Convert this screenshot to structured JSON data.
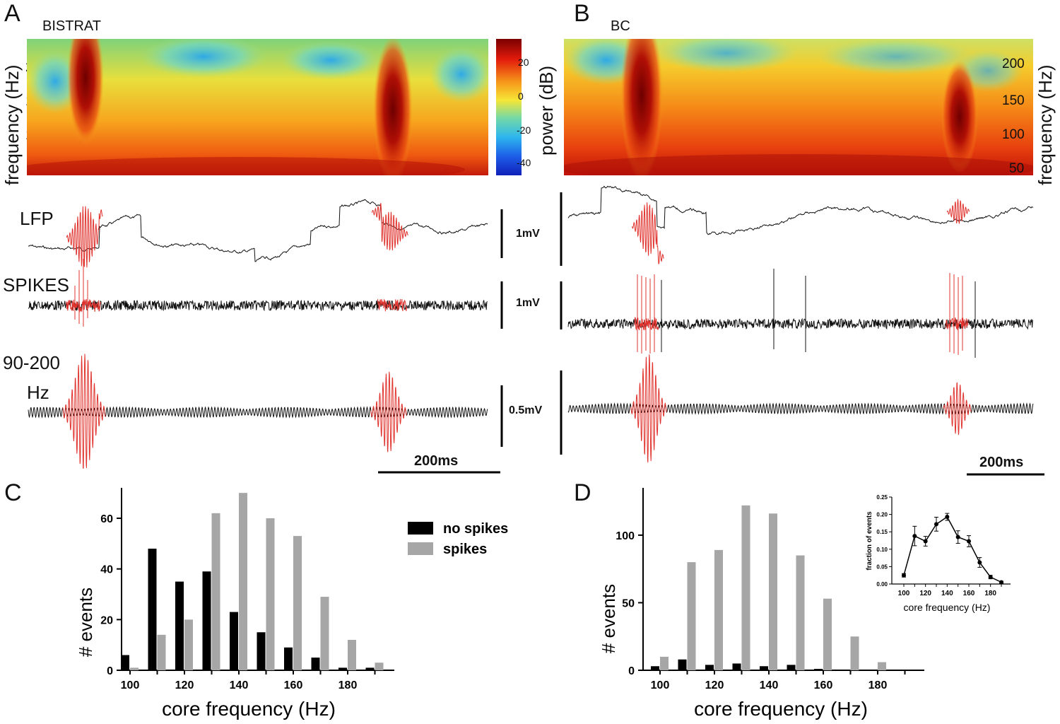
{
  "panels": {
    "A": {
      "letter": "A",
      "cell": "BISTRAT"
    },
    "B": {
      "letter": "B",
      "cell": "BC"
    },
    "C": {
      "letter": "C"
    },
    "D": {
      "letter": "D"
    }
  },
  "spectrogram": {
    "ylabel": "frequency (Hz)",
    "yticks": [
      "200",
      "150",
      "100",
      "50"
    ],
    "colorbar_label": "power (dB)",
    "colorbar_ticks": [
      "20",
      "0",
      "-20",
      "-40"
    ],
    "colors": {
      "high": "#8b0000",
      "mid": "#ffd21e",
      "low": "#1f3bdc"
    }
  },
  "traces": {
    "lfp_label": "LFP",
    "spikes_label": "SPIKES",
    "band_label_1": "90-200",
    "band_label_2": "Hz",
    "scales_A": [
      "1mV",
      "1mV",
      "0.5mV"
    ],
    "time_scale_A": "200ms",
    "time_scale_B": "200ms",
    "colors": {
      "trace": "#111111",
      "ripple": "#e0332e"
    }
  },
  "chart_data": [
    {
      "type": "bar",
      "panel": "C",
      "xlabel": "core frequency (Hz)",
      "ylabel": "# events",
      "categories": [
        100,
        110,
        120,
        130,
        140,
        150,
        160,
        170,
        180,
        190
      ],
      "xticks": [
        "100",
        "120",
        "140",
        "160",
        "180"
      ],
      "yticks": [
        0,
        20,
        40,
        60
      ],
      "ylim": [
        0,
        72
      ],
      "legend": [
        "no spikes",
        "spikes"
      ],
      "series": [
        {
          "name": "no spikes",
          "color": "#000000",
          "values": [
            6,
            48,
            35,
            39,
            23,
            15,
            9,
            5,
            1,
            1
          ]
        },
        {
          "name": "spikes",
          "color": "#a6a6a6",
          "values": [
            1,
            14,
            20,
            62,
            70,
            60,
            53,
            29,
            12,
            3
          ]
        }
      ]
    },
    {
      "type": "bar",
      "panel": "D",
      "xlabel": "core frequency (Hz)",
      "ylabel": "# events",
      "categories": [
        100,
        110,
        120,
        130,
        140,
        150,
        160,
        170,
        180,
        190
      ],
      "xticks": [
        "100",
        "120",
        "140",
        "160",
        "180"
      ],
      "yticks": [
        0,
        50,
        100
      ],
      "ylim": [
        0,
        135
      ],
      "series": [
        {
          "name": "no spikes",
          "color": "#000000",
          "values": [
            3,
            8,
            4,
            5,
            3,
            4,
            1,
            0,
            0,
            0
          ]
        },
        {
          "name": "spikes",
          "color": "#a6a6a6",
          "values": [
            10,
            80,
            89,
            122,
            116,
            85,
            53,
            25,
            6,
            0
          ]
        }
      ]
    },
    {
      "type": "line",
      "panel": "D-inset",
      "xlabel": "core frequency (Hz)",
      "ylabel": "fraction of events",
      "x": [
        100,
        110,
        120,
        130,
        140,
        150,
        160,
        170,
        180,
        190
      ],
      "y": [
        0.025,
        0.138,
        0.123,
        0.172,
        0.193,
        0.135,
        0.123,
        0.062,
        0.02,
        0.005
      ],
      "err": [
        0.005,
        0.028,
        0.014,
        0.02,
        0.01,
        0.018,
        0.016,
        0.014,
        0.005,
        0.003
      ],
      "xticks": [
        "100",
        "120",
        "140",
        "160",
        "180"
      ],
      "yticks": [
        "0.00",
        "0.05",
        "0.10",
        "0.15",
        "0.20",
        "0.25"
      ],
      "ylim": [
        0,
        0.25
      ]
    }
  ]
}
